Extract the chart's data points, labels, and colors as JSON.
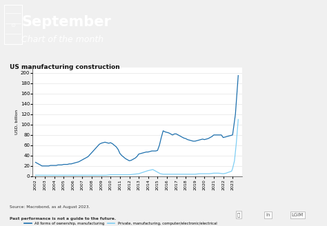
{
  "title": "US manufacturing construction",
  "ylabel": "USD, billion",
  "source_text": "Source: Macrobond, as at August 2023.\nPast performance is not a guide to the future.",
  "header_title": "September",
  "header_subtitle": "Chart of the month",
  "legend_line1": "All forms of ownership, manufacturing",
  "legend_line2": "Private, manufacturing, computer/electronic/electrical",
  "bg_color": "#f0f0f0",
  "header_bg": "#1c6fad",
  "plot_bg": "#ffffff",
  "line1_color": "#1c6fad",
  "line2_color": "#7ecef4",
  "ylim": [
    0,
    210
  ],
  "yticks": [
    0,
    20,
    40,
    60,
    80,
    100,
    120,
    140,
    160,
    180,
    200
  ],
  "line1_x": [
    2002.0,
    2002.1,
    2002.2,
    2002.3,
    2002.4,
    2002.5,
    2002.6,
    2002.7,
    2002.8,
    2002.9,
    2003.0,
    2003.2,
    2003.4,
    2003.6,
    2003.8,
    2004.0,
    2004.2,
    2004.4,
    2004.6,
    2004.8,
    2005.0,
    2005.2,
    2005.4,
    2005.6,
    2005.8,
    2006.0,
    2006.2,
    2006.4,
    2006.6,
    2006.8,
    2007.0,
    2007.2,
    2007.4,
    2007.6,
    2007.8,
    2008.0,
    2008.2,
    2008.4,
    2008.6,
    2008.8,
    2009.0,
    2009.2,
    2009.4,
    2009.6,
    2009.8,
    2010.0,
    2010.2,
    2010.4,
    2010.6,
    2010.8,
    2011.0,
    2011.2,
    2011.4,
    2011.6,
    2011.8,
    2012.0,
    2012.2,
    2012.4,
    2012.6,
    2012.8,
    2013.0,
    2013.2,
    2013.4,
    2013.6,
    2013.8,
    2014.0,
    2014.2,
    2014.4,
    2014.6,
    2014.8,
    2015.0,
    2015.2,
    2015.4,
    2015.6,
    2015.8,
    2016.0,
    2016.2,
    2016.4,
    2016.6,
    2016.8,
    2017.0,
    2017.2,
    2017.4,
    2017.6,
    2017.8,
    2018.0,
    2018.2,
    2018.4,
    2018.6,
    2018.8,
    2019.0,
    2019.2,
    2019.4,
    2019.6,
    2019.8,
    2020.0,
    2020.2,
    2020.4,
    2020.6,
    2020.8,
    2021.0,
    2021.2,
    2021.4,
    2021.6,
    2021.8,
    2022.0,
    2022.2,
    2022.4,
    2022.6,
    2022.8,
    2023.0,
    2023.3,
    2023.6
  ],
  "line1_y": [
    27,
    26,
    25,
    24,
    23,
    22,
    21,
    20,
    20,
    20,
    20,
    20,
    20,
    21,
    21,
    21,
    21,
    22,
    22,
    22,
    23,
    23,
    23,
    24,
    24,
    25,
    26,
    27,
    28,
    30,
    32,
    34,
    36,
    38,
    42,
    46,
    50,
    54,
    58,
    62,
    64,
    65,
    66,
    65,
    64,
    65,
    63,
    60,
    57,
    52,
    44,
    40,
    37,
    34,
    32,
    30,
    31,
    33,
    35,
    38,
    43,
    44,
    45,
    46,
    47,
    47,
    48,
    49,
    49,
    49,
    50,
    60,
    75,
    88,
    86,
    85,
    84,
    82,
    80,
    82,
    82,
    80,
    78,
    76,
    74,
    73,
    71,
    70,
    69,
    68,
    68,
    69,
    70,
    71,
    72,
    71,
    72,
    73,
    75,
    77,
    80,
    80,
    80,
    80,
    80,
    75,
    76,
    77,
    78,
    79,
    80,
    120,
    195
  ],
  "line2_x": [
    2002.0,
    2002.5,
    2003.0,
    2003.5,
    2004.0,
    2004.5,
    2005.0,
    2005.5,
    2006.0,
    2006.5,
    2007.0,
    2007.5,
    2008.0,
    2008.5,
    2009.0,
    2009.5,
    2010.0,
    2010.5,
    2011.0,
    2011.5,
    2012.0,
    2012.5,
    2013.0,
    2013.5,
    2014.0,
    2014.5,
    2015.0,
    2015.3,
    2015.6,
    2016.0,
    2016.5,
    2017.0,
    2017.5,
    2018.0,
    2018.5,
    2019.0,
    2019.5,
    2020.0,
    2020.5,
    2021.0,
    2021.5,
    2022.0,
    2022.3,
    2022.6,
    2022.9,
    2023.0,
    2023.2,
    2023.4,
    2023.6
  ],
  "line2_y": [
    2,
    2,
    2,
    2,
    2,
    2,
    2,
    2,
    2,
    2,
    2,
    2,
    2,
    2,
    2,
    2,
    3,
    3,
    3,
    3,
    3,
    4,
    5,
    8,
    11,
    13,
    8,
    5,
    4,
    4,
    4,
    4,
    4,
    4,
    4,
    4,
    5,
    5,
    5,
    6,
    6,
    5,
    6,
    8,
    10,
    15,
    30,
    65,
    110
  ]
}
